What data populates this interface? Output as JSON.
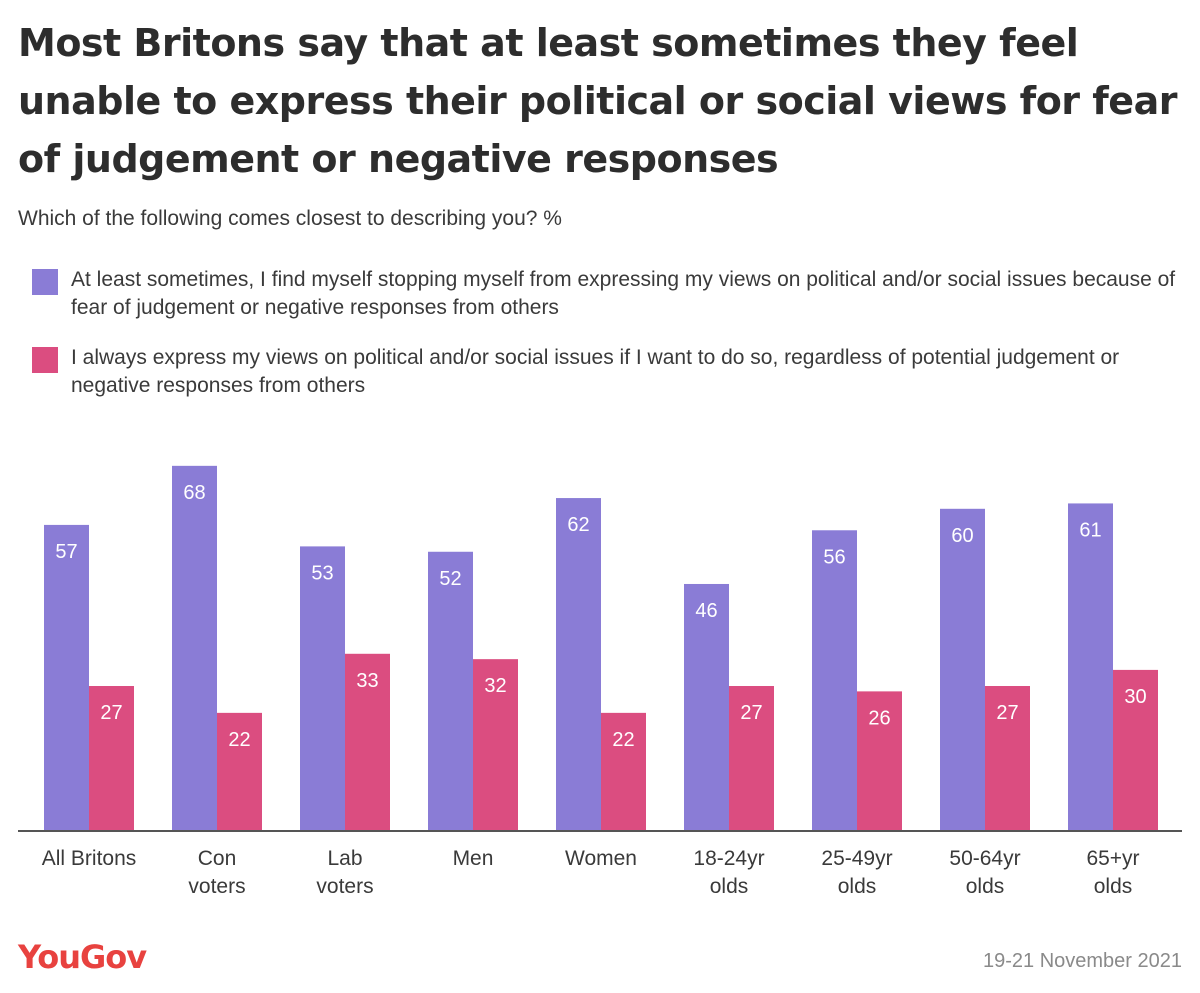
{
  "title": "Most Britons say that at least sometimes they feel unable to express their political or social views for fear of judgement or negative responses",
  "subtitle": "Which of the following comes closest to describing you? %",
  "logo": "YouGov",
  "date": "19-21 November 2021",
  "colors": {
    "series1": "#8a7cd6",
    "series2": "#db4d80",
    "logo": "#e8423f",
    "axis": "#555555",
    "bar_label": "#ffffff"
  },
  "chart_data": {
    "type": "bar",
    "categories": [
      [
        "All Britons"
      ],
      [
        "Con",
        "voters"
      ],
      [
        "Lab",
        "voters"
      ],
      [
        "Men"
      ],
      [
        "Women"
      ],
      [
        "18-24yr",
        "olds"
      ],
      [
        "25-49yr",
        "olds"
      ],
      [
        "50-64yr",
        "olds"
      ],
      [
        "65+yr",
        "olds"
      ]
    ],
    "series": [
      {
        "name": "At least sometimes, I find myself stopping myself from expressing my views on political and/or social issues because of fear of judgement or negative responses from others",
        "values": [
          57,
          68,
          53,
          52,
          62,
          46,
          56,
          60,
          61
        ]
      },
      {
        "name": "I always express my views on political and/or social issues if I want to do so, regardless of potential judgement or negative responses from others",
        "values": [
          27,
          22,
          33,
          32,
          22,
          27,
          26,
          27,
          30
        ]
      }
    ],
    "ylim": [
      0,
      68
    ],
    "grid": false,
    "legend_position": "top"
  }
}
